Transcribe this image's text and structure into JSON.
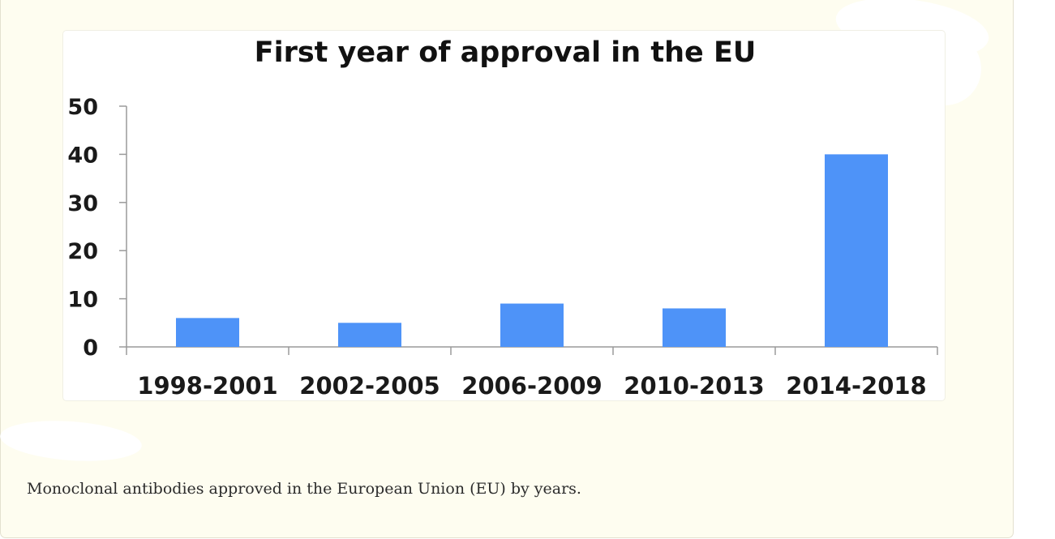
{
  "caption": "Monoclonal antibodies approved in the European Union (EU) by years.",
  "colors": {
    "bar": "#4e93f8",
    "axis": "#9a9a9a",
    "card_background": "#fefdf0"
  },
  "chart_data": {
    "type": "bar",
    "title": "First year of approval in the EU",
    "xlabel": "",
    "ylabel": "",
    "categories": [
      "1998-2001",
      "2002-2005",
      "2006-2009",
      "2010-2013",
      "2014-2018"
    ],
    "values": [
      6,
      5,
      9,
      8,
      40
    ],
    "ylim": [
      0,
      50
    ],
    "yticks": [
      0,
      10,
      20,
      30,
      40,
      50
    ],
    "grid": false,
    "legend": "none"
  }
}
